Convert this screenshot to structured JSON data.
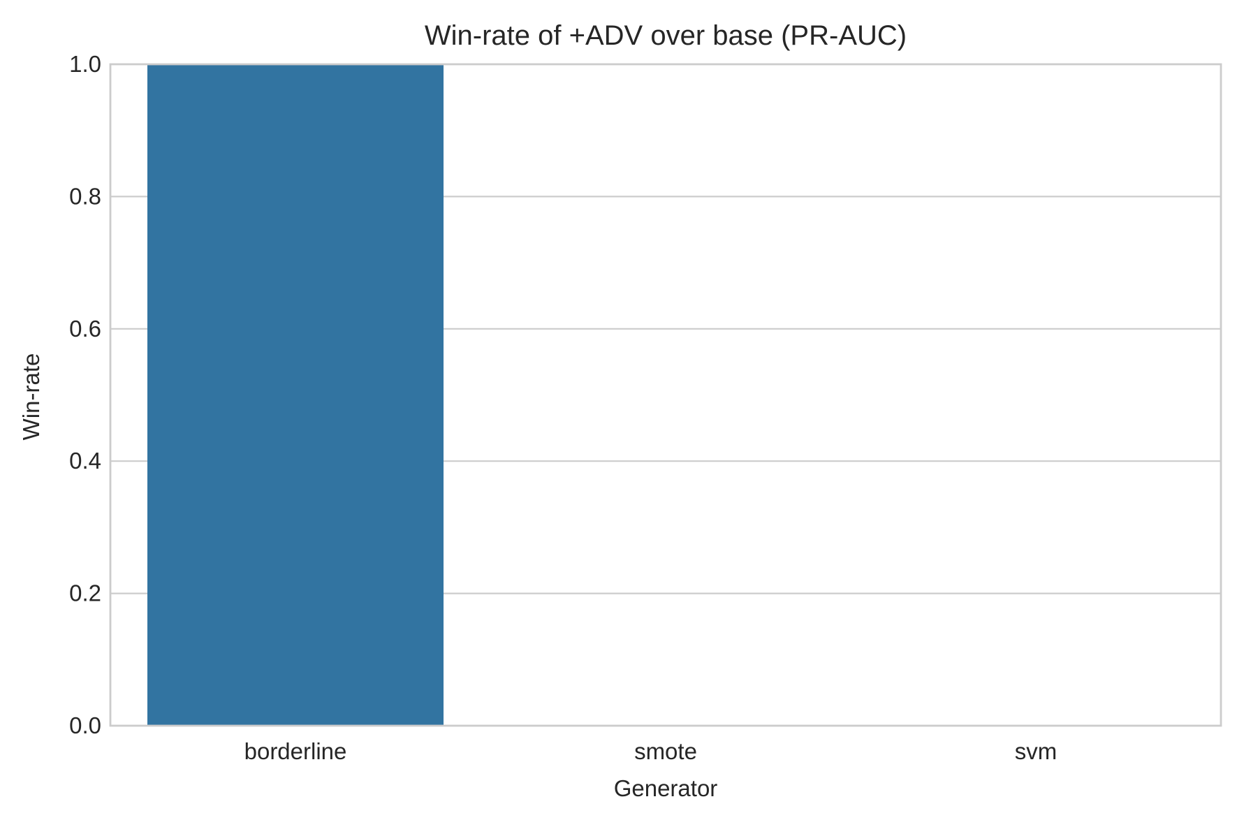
{
  "chart_data": {
    "type": "bar",
    "title": "Win-rate of +ADV over base (PR-AUC)",
    "xlabel": "Generator",
    "ylabel": "Win-rate",
    "categories": [
      "borderline",
      "smote",
      "svm"
    ],
    "values": [
      1.0,
      0.0,
      0.0
    ],
    "ylim": [
      0,
      1
    ],
    "yticks": [
      "0.0",
      "0.2",
      "0.4",
      "0.6",
      "0.8",
      "1.0"
    ],
    "grid": "horizontal",
    "legend": "none",
    "colors": {
      "bar": "#3274a1",
      "grid": "#cccccc",
      "frame": "#cccccc",
      "text": "#262626"
    }
  }
}
